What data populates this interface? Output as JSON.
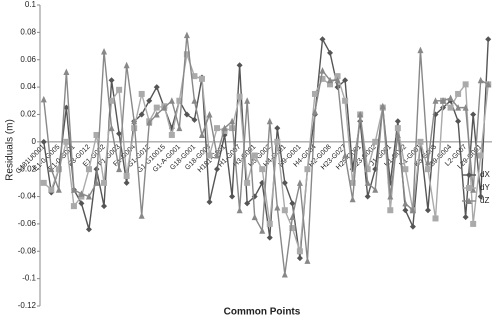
{
  "chart_data": {
    "type": "line",
    "y_label": "Residuals (m)",
    "x_label": "Common Points",
    "categories": [
      "G181U0001",
      null,
      "E1-0-G005",
      null,
      "E1-0-G001",
      null,
      "F3-G012",
      null,
      "E1-G002",
      null,
      "F1-G003",
      null,
      "F1-G004",
      null,
      "G1-G012",
      null,
      "G1-G10015",
      null,
      "G1-A-G001",
      null,
      "G18-G001",
      null,
      "G18-G003",
      null,
      "H181-G001",
      null,
      "H1-G007",
      null,
      "H3-G001",
      null,
      "H5-G002",
      null,
      "H4-G001",
      null,
      "H9-G001",
      null,
      "H4-G004",
      null,
      "H2-G008",
      null,
      "H23-G027",
      null,
      "H25-G001",
      null,
      "H23-G002",
      null,
      "J1-G001",
      null,
      "K1-G002",
      null,
      "K1-G001",
      null,
      "K5-G003",
      null,
      "L39-G004",
      null,
      "L2-G007",
      null,
      "L29-G001",
      null
    ],
    "series": [
      {
        "name": "dX",
        "color": "#555555",
        "marker": "diamond",
        "values": [
          0,
          -0.037,
          -0.02,
          0.025,
          -0.035,
          -0.045,
          -0.064,
          -0.02,
          -0.047,
          0.045,
          0.006,
          -0.03,
          0.015,
          0.02,
          0.03,
          0.04,
          0.025,
          0.01,
          0.03,
          0.02,
          0.016,
          0.047,
          -0.044,
          -0.02,
          0.005,
          -0.04,
          0.056,
          -0.045,
          -0.04,
          -0.03,
          -0.07,
          0.01,
          -0.03,
          -0.045,
          -0.085,
          -0.02,
          0.02,
          0.075,
          0.065,
          0.04,
          0.045,
          -0.02,
          0.015,
          -0.04,
          -0.02,
          0.025,
          -0.03,
          0.015,
          -0.05,
          -0.062,
          0,
          -0.05,
          0.02,
          0.025,
          0.03,
          0.015,
          -0.055,
          0.02,
          -0.04,
          0.075
        ]
      },
      {
        "name": "dY",
        "color": "#aaaaaa",
        "marker": "square",
        "values": [
          -0.03,
          -0.035,
          -0.02,
          0,
          -0.047,
          -0.04,
          -0.02,
          0.005,
          -0.03,
          0.03,
          0.038,
          -0.025,
          0.01,
          0.035,
          0.015,
          0.025,
          0.026,
          0.005,
          0.03,
          0.064,
          0.048,
          0.046,
          -0.01,
          0.01,
          0.008,
          0.01,
          0.033,
          -0.03,
          -0.01,
          -0.02,
          -0.06,
          0,
          -0.05,
          -0.063,
          -0.08,
          -0.02,
          0.035,
          0.046,
          0.042,
          0.048,
          0.03,
          -0.03,
          0.02,
          -0.02,
          0,
          0.025,
          -0.05,
          0.01,
          -0.02,
          -0.05,
          0,
          -0.02,
          -0.056,
          0.03,
          0.025,
          0.035,
          0.042,
          -0.06,
          -0.01,
          0.042
        ]
      },
      {
        "name": "dZ",
        "color": "#888888",
        "marker": "triangle",
        "values": [
          0.031,
          -0.02,
          -0.035,
          0.051,
          -0.035,
          -0.038,
          -0.04,
          -0.03,
          0.066,
          0.01,
          -0.02,
          0.056,
          0.015,
          -0.054,
          0.014,
          0.02,
          0.025,
          0.03,
          0.01,
          0.078,
          0.03,
          0.005,
          0.02,
          -0.01,
          0.01,
          0.015,
          -0.05,
          0.03,
          -0.055,
          -0.065,
          0.015,
          -0.048,
          -0.097,
          -0.055,
          -0.03,
          -0.087,
          0.022,
          0.052,
          0.045,
          0.045,
          -0.01,
          -0.042,
          0.02,
          -0.03,
          -0.035,
          0.026,
          -0.04,
          0.005,
          -0.045,
          -0.05,
          0.067,
          -0.015,
          0.03,
          0.03,
          0.032,
          0.025,
          0.025,
          -0.035,
          0.045,
          0.042
        ]
      }
    ],
    "ylim": [
      -0.12,
      0.1
    ],
    "yticks": [
      -0.12,
      -0.1,
      -0.08,
      -0.06,
      -0.04,
      -0.02,
      0,
      0.02,
      0.04,
      0.06,
      0.08,
      0.1
    ],
    "grid": false,
    "legend": "right"
  }
}
